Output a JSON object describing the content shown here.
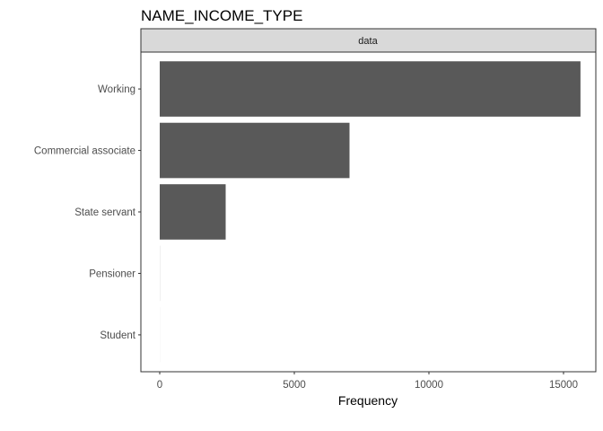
{
  "chart_data": {
    "type": "bar",
    "orientation": "horizontal",
    "title": "NAME_INCOME_TYPE",
    "facet_label": "data",
    "xlabel": "Frequency",
    "ylabel": "",
    "categories": [
      "Working",
      "Commercial associate",
      "State servant",
      "Pensioner",
      "Student"
    ],
    "values": [
      15630,
      7050,
      2450,
      3,
      1
    ],
    "xlim": [
      -700,
      16200
    ],
    "xticks": [
      0,
      5000,
      10000,
      15000
    ],
    "xtick_labels": [
      "0",
      "5000",
      "10000",
      "15000"
    ],
    "grid": false,
    "legend": "none",
    "bar_color": "#595959"
  }
}
